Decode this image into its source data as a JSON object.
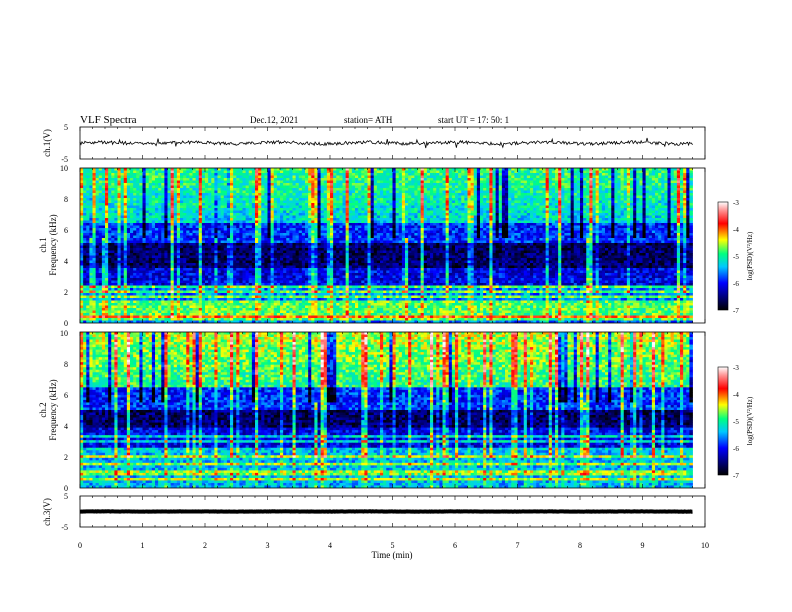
{
  "header": {
    "title": "VLF  Spectra",
    "date": "Dec.12, 2021",
    "station": "station= ATH",
    "start": "start  UT  =   17: 50: 1"
  },
  "chart_data": [
    {
      "type": "line",
      "name": "ch1-waveform",
      "ylabel": "ch.1(V)",
      "ylim": [
        -5,
        5
      ],
      "yticks": [
        "5",
        "-5"
      ],
      "xlim": [
        0,
        10
      ],
      "baseline": 0,
      "series_color": "#000000"
    },
    {
      "type": "heatmap",
      "name": "ch1-spectrogram",
      "ylabel": "ch.1\nFrequency (kHz)",
      "ylim": [
        0,
        10
      ],
      "yticks": [
        "0",
        "2",
        "4",
        "6",
        "8",
        "10"
      ],
      "xlim": [
        0,
        10
      ],
      "data_end_min": 9.8,
      "colorbar": {
        "label": "log(PSD)(V²/Hz)",
        "range": [
          -7,
          -3
        ],
        "ticks": [
          "-3",
          "-4",
          "-5",
          "-6",
          "-7"
        ]
      },
      "strong_bands_khz": [
        0.3,
        0.5,
        0.8,
        1.1,
        1.4,
        1.7,
        2.0,
        2.3
      ],
      "quiet_band_khz": [
        3.6,
        5.2
      ]
    },
    {
      "type": "heatmap",
      "name": "ch2-spectrogram",
      "ylabel": "ch.2\nFrequency (kHz)",
      "ylim": [
        0,
        10
      ],
      "yticks": [
        "0",
        "2",
        "4",
        "6",
        "8",
        "10"
      ],
      "xlim": [
        0,
        10
      ],
      "data_end_min": 9.8,
      "colorbar": {
        "label": "log(PSD)(V²/Hz)",
        "range": [
          -7,
          -3
        ],
        "ticks": [
          "-3",
          "-4",
          "-5",
          "-6",
          "-7"
        ]
      },
      "strong_bands_khz": [
        0.6,
        1.0,
        1.5,
        2.0,
        2.5,
        3.0,
        3.3
      ],
      "quiet_band_khz": [
        3.8,
        5.0
      ]
    },
    {
      "type": "line",
      "name": "ch3-waveform",
      "ylabel": "ch.3(V)",
      "ylim": [
        -5,
        5
      ],
      "yticks": [
        "5",
        "-5"
      ],
      "xlim": [
        0,
        10
      ],
      "baseline": 0,
      "series_color": "#000000"
    }
  ],
  "xaxis": {
    "label": "Time  (min)",
    "ticks": [
      "0",
      "1",
      "2",
      "3",
      "4",
      "5",
      "6",
      "7",
      "8",
      "9",
      "10"
    ]
  }
}
